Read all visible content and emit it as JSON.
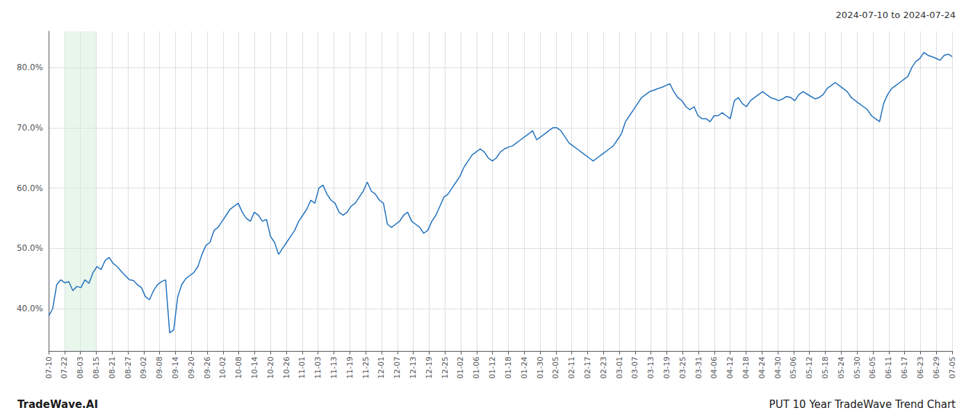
{
  "chart_data": {
    "type": "line",
    "title": "2024-07-10 to 2024-07-24",
    "annotations": [
      "TradeWave.AI",
      "PUT 10 Year TradeWave Trend Chart"
    ],
    "color": "#1f6fbd",
    "highlight": {
      "x": [
        1,
        3
      ],
      "color": "#d4edda"
    },
    "grid": true,
    "xlim": [
      0,
      57
    ],
    "xticks": [
      {
        "value": 0,
        "label": "07-10"
      },
      {
        "value": 1,
        "label": "07-22"
      },
      {
        "value": 2,
        "label": "08-03"
      },
      {
        "value": 3,
        "label": "08-15"
      },
      {
        "value": 4,
        "label": "08-21"
      },
      {
        "value": 5,
        "label": "08-27"
      },
      {
        "value": 6,
        "label": "09-02"
      },
      {
        "value": 7,
        "label": "09-08"
      },
      {
        "value": 8,
        "label": "09-14"
      },
      {
        "value": 9,
        "label": "09-20"
      },
      {
        "value": 10,
        "label": "09-26"
      },
      {
        "value": 11,
        "label": "10-02"
      },
      {
        "value": 12,
        "label": "10-08"
      },
      {
        "value": 13,
        "label": "10-14"
      },
      {
        "value": 14,
        "label": "10-20"
      },
      {
        "value": 15,
        "label": "10-26"
      },
      {
        "value": 16,
        "label": "11-01"
      },
      {
        "value": 17,
        "label": "11-03"
      },
      {
        "value": 18,
        "label": "11-13"
      },
      {
        "value": 19,
        "label": "11-19"
      },
      {
        "value": 20,
        "label": "11-25"
      },
      {
        "value": 21,
        "label": "12-01"
      },
      {
        "value": 22,
        "label": "12-07"
      },
      {
        "value": 23,
        "label": "12-13"
      },
      {
        "value": 24,
        "label": "12-19"
      },
      {
        "value": 25,
        "label": "12-25"
      },
      {
        "value": 26,
        "label": "01-02"
      },
      {
        "value": 27,
        "label": "01-06"
      },
      {
        "value": 28,
        "label": "01-12"
      },
      {
        "value": 29,
        "label": "01-18"
      },
      {
        "value": 30,
        "label": "01-24"
      },
      {
        "value": 31,
        "label": "01-30"
      },
      {
        "value": 32,
        "label": "02-05"
      },
      {
        "value": 33,
        "label": "02-11"
      },
      {
        "value": 34,
        "label": "02-17"
      },
      {
        "value": 35,
        "label": "02-23"
      },
      {
        "value": 36,
        "label": "03-01"
      },
      {
        "value": 37,
        "label": "03-07"
      },
      {
        "value": 38,
        "label": "03-13"
      },
      {
        "value": 39,
        "label": "03-19"
      },
      {
        "value": 40,
        "label": "03-25"
      },
      {
        "value": 41,
        "label": "03-31"
      },
      {
        "value": 42,
        "label": "04-06"
      },
      {
        "value": 43,
        "label": "04-12"
      },
      {
        "value": 44,
        "label": "04-18"
      },
      {
        "value": 45,
        "label": "04-24"
      },
      {
        "value": 46,
        "label": "04-30"
      },
      {
        "value": 47,
        "label": "05-06"
      },
      {
        "value": 48,
        "label": "05-12"
      },
      {
        "value": 49,
        "label": "05-18"
      },
      {
        "value": 50,
        "label": "05-24"
      },
      {
        "value": 51,
        "label": "05-30"
      },
      {
        "value": 52,
        "label": "06-05"
      },
      {
        "value": 53,
        "label": "06-11"
      },
      {
        "value": 54,
        "label": "06-17"
      },
      {
        "value": 55,
        "label": "06-23"
      },
      {
        "value": 56,
        "label": "06-29"
      },
      {
        "value": 57,
        "label": "07-05"
      }
    ],
    "ylim": [
      0.33,
      0.86
    ],
    "yticks": [
      {
        "value": 0.4,
        "label": "40.0%"
      },
      {
        "value": 0.5,
        "label": "50.0%"
      },
      {
        "value": 0.6,
        "label": "60.0%"
      },
      {
        "value": 0.7,
        "label": "70.0%"
      },
      {
        "value": 0.8,
        "label": "80.0%"
      }
    ],
    "values": [
      0.388,
      0.4,
      0.44,
      0.448,
      0.443,
      0.445,
      0.43,
      0.437,
      0.435,
      0.448,
      0.442,
      0.46,
      0.47,
      0.465,
      0.48,
      0.485,
      0.475,
      0.47,
      0.462,
      0.455,
      0.448,
      0.447,
      0.44,
      0.435,
      0.42,
      0.415,
      0.43,
      0.44,
      0.445,
      0.448,
      0.36,
      0.365,
      0.42,
      0.44,
      0.45,
      0.455,
      0.46,
      0.47,
      0.49,
      0.505,
      0.51,
      0.53,
      0.535,
      0.545,
      0.555,
      0.565,
      0.57,
      0.575,
      0.56,
      0.55,
      0.545,
      0.56,
      0.555,
      0.545,
      0.548,
      0.52,
      0.51,
      0.49,
      0.5,
      0.51,
      0.52,
      0.53,
      0.545,
      0.555,
      0.565,
      0.58,
      0.575,
      0.6,
      0.605,
      0.59,
      0.58,
      0.575,
      0.56,
      0.555,
      0.56,
      0.57,
      0.575,
      0.585,
      0.595,
      0.61,
      0.595,
      0.59,
      0.58,
      0.575,
      0.54,
      0.535,
      0.54,
      0.545,
      0.555,
      0.56,
      0.545,
      0.54,
      0.535,
      0.525,
      0.53,
      0.545,
      0.555,
      0.57,
      0.585,
      0.59,
      0.6,
      0.61,
      0.62,
      0.635,
      0.645,
      0.655,
      0.66,
      0.665,
      0.66,
      0.65,
      0.645,
      0.65,
      0.66,
      0.665,
      0.668,
      0.67,
      0.675,
      0.68,
      0.685,
      0.69,
      0.695,
      0.68,
      0.685,
      0.69,
      0.695,
      0.7,
      0.7,
      0.695,
      0.685,
      0.675,
      0.67,
      0.665,
      0.66,
      0.655,
      0.65,
      0.645,
      0.65,
      0.655,
      0.66,
      0.665,
      0.67,
      0.68,
      0.69,
      0.71,
      0.72,
      0.73,
      0.74,
      0.75,
      0.755,
      0.76,
      0.762,
      0.765,
      0.767,
      0.77,
      0.773,
      0.76,
      0.75,
      0.745,
      0.735,
      0.73,
      0.735,
      0.72,
      0.715,
      0.715,
      0.71,
      0.72,
      0.72,
      0.725,
      0.72,
      0.715,
      0.745,
      0.75,
      0.74,
      0.735,
      0.745,
      0.75,
      0.755,
      0.76,
      0.755,
      0.75,
      0.748,
      0.745,
      0.748,
      0.752,
      0.75,
      0.745,
      0.755,
      0.76,
      0.756,
      0.752,
      0.748,
      0.75,
      0.755,
      0.765,
      0.77,
      0.775,
      0.77,
      0.765,
      0.76,
      0.75,
      0.745,
      0.74,
      0.735,
      0.73,
      0.72,
      0.715,
      0.71,
      0.74,
      0.755,
      0.765,
      0.77,
      0.775,
      0.78,
      0.785,
      0.8,
      0.81,
      0.815,
      0.825,
      0.82,
      0.818,
      0.815,
      0.812,
      0.82,
      0.822,
      0.818
    ]
  }
}
